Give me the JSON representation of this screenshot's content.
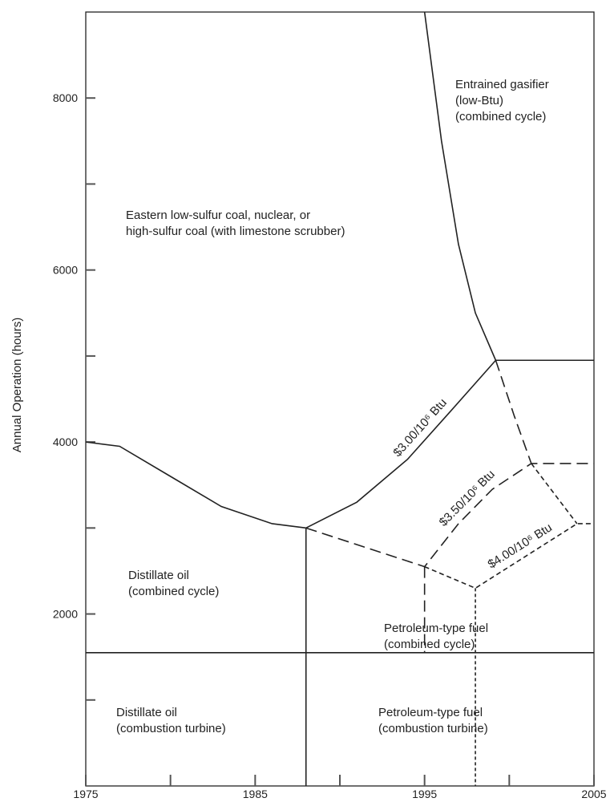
{
  "chart_data": {
    "type": "line",
    "ylabel": "Annual Operation (hours)",
    "xlim": [
      1975,
      2005
    ],
    "ylim": [
      0,
      9000
    ],
    "xticks": [
      1975,
      1985,
      1995,
      2005
    ],
    "xminorticks": [
      1980,
      1990,
      2000
    ],
    "yticks": [
      2000,
      4000,
      6000,
      8000
    ],
    "yminorticks": [
      1000,
      3000,
      5000,
      7000
    ],
    "color": "#222222",
    "series": [
      {
        "style": "solid",
        "x": [
          1975,
          1977,
          1980,
          1983,
          1986,
          1988
        ],
        "y": [
          4000,
          3950,
          3600,
          3250,
          3050,
          3000
        ]
      },
      {
        "name": "$3.00/10⁶ Btu",
        "style": "solid",
        "x": [
          1988,
          1991,
          1994,
          1996.5,
          1999.2
        ],
        "y": [
          3000,
          3300,
          3800,
          4350,
          4950
        ]
      },
      {
        "style": "solid",
        "x": [
          1995,
          1996,
          1997,
          1998,
          1999.2
        ],
        "y": [
          9000,
          7500,
          6300,
          5500,
          4950
        ]
      },
      {
        "style": "solid",
        "x": [
          1999.2,
          2005
        ],
        "y": [
          4950,
          4950
        ]
      },
      {
        "style": "solid",
        "x": [
          1988,
          1988
        ],
        "y": [
          3000,
          0
        ]
      },
      {
        "style": "solid",
        "x": [
          1975,
          2005
        ],
        "y": [
          1550,
          1550
        ]
      },
      {
        "name": "$3.50/10⁶ Btu",
        "style": "dashed",
        "x": [
          1988,
          1995,
          1997,
          1999,
          2001.3,
          2005
        ],
        "y": [
          3000,
          2550,
          3050,
          3450,
          3750,
          3750
        ]
      },
      {
        "style": "dashed",
        "x": [
          1999.2,
          2000.3,
          2001.3
        ],
        "y": [
          4950,
          4300,
          3750
        ]
      },
      {
        "name": "$4.00/10⁶ Btu",
        "style": "shortdash",
        "x": [
          1995,
          1998,
          2004,
          2005
        ],
        "y": [
          2550,
          2300,
          3050,
          3050
        ]
      },
      {
        "style": "shortdash",
        "x": [
          2001.3,
          2004
        ],
        "y": [
          3750,
          3050
        ]
      },
      {
        "style": "dashed",
        "x": [
          1995,
          1995
        ],
        "y": [
          2550,
          1550
        ]
      },
      {
        "style": "dotted",
        "x": [
          1998,
          1998
        ],
        "y": [
          2300,
          0
        ]
      }
    ],
    "annotations": [
      [
        "Entrained gasifier",
        "(low-Btu)",
        "(combined cycle)"
      ],
      [
        "Eastern low-sulfur coal, nuclear, or",
        "high-sulfur coal (with limestone scrubber)"
      ],
      [
        "Distillate oil",
        "(combined cycle)"
      ],
      [
        "Petroleum-type fuel",
        "(combined cycle)"
      ],
      [
        "Distillate oil",
        "(combustion turbine)"
      ],
      [
        "Petroleum-type fuel",
        "(combustion turbine)"
      ]
    ]
  }
}
